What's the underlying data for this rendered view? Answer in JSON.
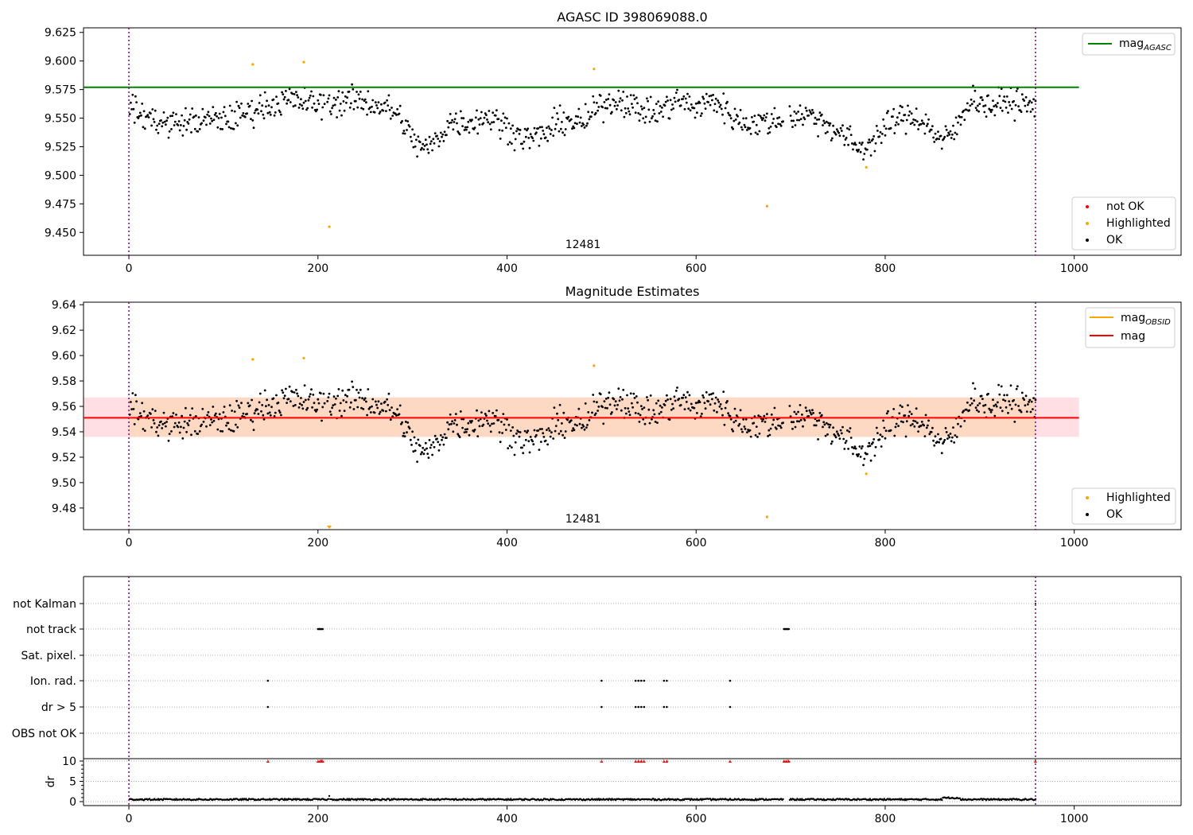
{
  "chart_data": [
    {
      "type": "scatter",
      "title": "AGASC ID 398069088.0",
      "annotation": "12481",
      "xlim": [
        -48,
        1113
      ],
      "ylim": [
        9.43,
        9.629
      ],
      "xticks": [
        0,
        200,
        400,
        600,
        800,
        1000
      ],
      "yticks": [
        9.45,
        9.475,
        9.5,
        9.525,
        9.55,
        9.575,
        9.6,
        9.625
      ],
      "ytick_labels": [
        "9.450",
        "9.475",
        "9.500",
        "9.525",
        "9.550",
        "9.575",
        "9.600",
        "9.625"
      ],
      "xtick_labels": [
        "0",
        "200",
        "400",
        "600",
        "800",
        "1000"
      ],
      "mag_agasc": 9.577,
      "mag_agasc_xrange": [
        -48,
        1005
      ],
      "obs_boundaries": [
        0,
        959
      ],
      "legend_top": [
        {
          "label": "mag",
          "sub": "AGASC",
          "color": "#008000"
        }
      ],
      "legend_bottom": [
        {
          "label": "not OK",
          "color": "#ff0000"
        },
        {
          "label": "Highlighted",
          "color": "#ffa500"
        },
        {
          "label": "OK",
          "color": "#000000"
        }
      ],
      "highlighted": [
        [
          131,
          9.597
        ],
        [
          185,
          9.599
        ],
        [
          212,
          9.455
        ],
        [
          492,
          9.593
        ],
        [
          675,
          9.473
        ],
        [
          780,
          9.507
        ]
      ]
    },
    {
      "type": "scatter",
      "title": "Magnitude Estimates",
      "annotation": "12481",
      "xlim": [
        -48,
        1113
      ],
      "ylim": [
        9.463,
        9.642
      ],
      "xticks": [
        0,
        200,
        400,
        600,
        800,
        1000
      ],
      "xtick_labels": [
        "0",
        "200",
        "400",
        "600",
        "800",
        "1000"
      ],
      "yticks": [
        9.48,
        9.5,
        9.52,
        9.54,
        9.56,
        9.58,
        9.6,
        9.62,
        9.64
      ],
      "ytick_labels": [
        "9.48",
        "9.50",
        "9.52",
        "9.54",
        "9.56",
        "9.58",
        "9.60",
        "9.62",
        "9.64"
      ],
      "mag": 9.551,
      "mag_band": [
        9.536,
        9.567
      ],
      "mag_band_xrange": [
        -48,
        1005
      ],
      "mag_obsid_band": [
        9.536,
        9.567
      ],
      "mag_obsid_xrange": [
        0,
        959
      ],
      "obs_boundaries": [
        0,
        959
      ],
      "legend_top": [
        {
          "label": "mag",
          "sub": "OBSID",
          "color": "#ffa500"
        },
        {
          "label": "mag",
          "sub": "",
          "color": "#ff0000"
        }
      ],
      "legend_bottom": [
        {
          "label": "Highlighted",
          "color": "#ffa500"
        },
        {
          "label": "OK",
          "color": "#000000"
        }
      ],
      "highlighted": [
        [
          131,
          9.597
        ],
        [
          185,
          9.598
        ],
        [
          492,
          9.592
        ],
        [
          675,
          9.473
        ],
        [
          780,
          9.507
        ]
      ],
      "out_of_range_marker": [
        212,
        9.463
      ]
    },
    {
      "type": "scatter",
      "title": "",
      "xlim": [
        -48,
        1113
      ],
      "xticks": [
        0,
        200,
        400,
        600,
        800,
        1000
      ],
      "xtick_labels": [
        "0",
        "200",
        "400",
        "600",
        "800",
        "1000"
      ],
      "flag_categories": [
        "not Kalman",
        "not track",
        "Sat. pixel.",
        "Ion. rad.",
        "dr > 5",
        "OBS not OK"
      ],
      "flags": {
        "not track": [
          200,
          201,
          202,
          203,
          204,
          205,
          693,
          694,
          695,
          696,
          697,
          698
        ],
        "Ion. rad.": [
          147,
          500,
          536,
          539,
          542,
          545,
          566,
          569,
          636
        ],
        "dr > 5": [
          147,
          500,
          536,
          539,
          542,
          545,
          566,
          569,
          636
        ]
      },
      "dr_label": "dr",
      "dr_yticks": [
        0,
        5,
        10
      ],
      "dr_ytick_labels": [
        "0",
        "5",
        "10"
      ],
      "dr_clipped_at": 10,
      "dr_clipped": [
        147,
        200,
        202,
        203,
        204,
        205,
        500,
        536,
        539,
        542,
        545,
        566,
        569,
        636,
        693,
        695,
        697,
        698,
        959
      ],
      "obs_boundaries": [
        0,
        959
      ]
    }
  ]
}
